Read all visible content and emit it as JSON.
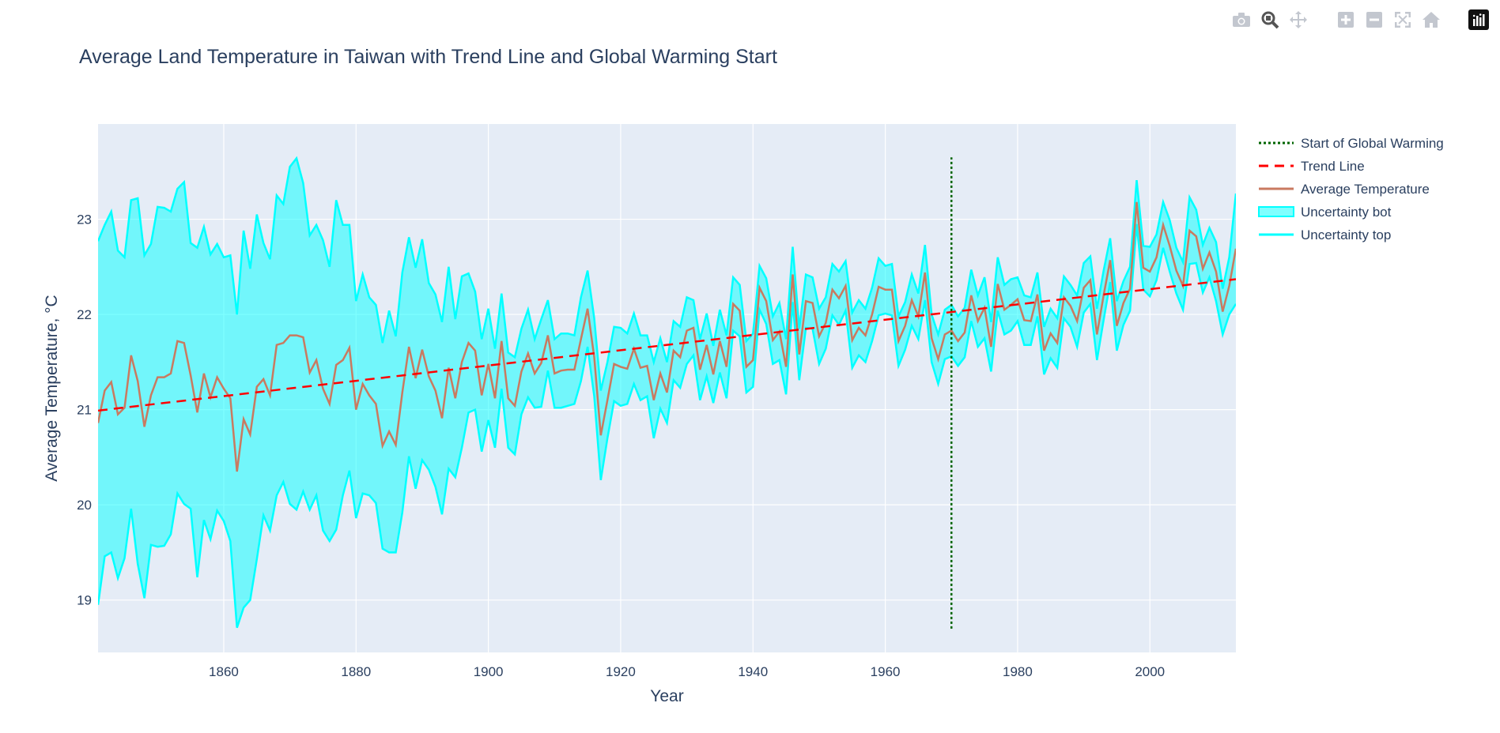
{
  "toolbar": {
    "buttons": [
      {
        "name": "camera-icon"
      },
      {
        "name": "zoom-icon"
      },
      {
        "name": "pan-icon"
      },
      {
        "name": "zoom-in-icon"
      },
      {
        "name": "zoom-out-icon"
      },
      {
        "name": "autoscale-icon"
      },
      {
        "name": "reset-axes-icon"
      },
      {
        "name": "plotly-logo-icon"
      }
    ]
  },
  "chart_data": {
    "type": "line",
    "title": "Average Land Temperature in Taiwan with Trend Line and Global Warming Start",
    "xlabel": "Year",
    "ylabel": "Average Temperature, °C",
    "xlim": [
      1841,
      2013
    ],
    "ylim": [
      18.45,
      24.0
    ],
    "xticks": [
      1860,
      1880,
      1900,
      1920,
      1940,
      1960,
      1980,
      2000
    ],
    "yticks": [
      19,
      20,
      21,
      22,
      23
    ],
    "grid": true,
    "legend_position": "top-right",
    "colors": {
      "plot_bg": "#e5ecf6",
      "grid": "#ffffff",
      "band": "#00ffff",
      "band_fill": "rgba(0,255,255,0.5)",
      "average": "#c97a60",
      "trend": "#ff0000",
      "warming": "#006400"
    },
    "legend": [
      {
        "label": "Start of Global Warming",
        "style": "dotted",
        "color": "#006400"
      },
      {
        "label": "Trend Line",
        "style": "dashed",
        "color": "#ff0000"
      },
      {
        "label": "Average Temperature",
        "style": "solid",
        "color": "#c97a60"
      },
      {
        "label": "Uncertainty bot",
        "style": "band",
        "color": "#00ffff"
      },
      {
        "label": "Uncertainty top",
        "style": "solid",
        "color": "#00ffff"
      }
    ],
    "warming_start": {
      "x": 1970,
      "y_range": [
        18.7,
        23.65
      ]
    },
    "trend": {
      "x": [
        1841,
        2013
      ],
      "y": [
        20.99,
        22.37
      ]
    },
    "x": [
      1841,
      1842,
      1843,
      1844,
      1845,
      1846,
      1847,
      1848,
      1849,
      1850,
      1851,
      1852,
      1853,
      1854,
      1855,
      1856,
      1857,
      1858,
      1859,
      1860,
      1861,
      1862,
      1863,
      1864,
      1865,
      1866,
      1867,
      1868,
      1869,
      1870,
      1871,
      1872,
      1873,
      1874,
      1875,
      1876,
      1877,
      1878,
      1879,
      1880,
      1881,
      1882,
      1883,
      1884,
      1885,
      1886,
      1887,
      1888,
      1889,
      1890,
      1891,
      1892,
      1893,
      1894,
      1895,
      1896,
      1897,
      1898,
      1899,
      1900,
      1901,
      1902,
      1903,
      1904,
      1905,
      1906,
      1907,
      1908,
      1909,
      1910,
      1911,
      1912,
      1913,
      1914,
      1915,
      1916,
      1917,
      1918,
      1919,
      1920,
      1921,
      1922,
      1923,
      1924,
      1925,
      1926,
      1927,
      1928,
      1929,
      1930,
      1931,
      1932,
      1933,
      1934,
      1935,
      1936,
      1937,
      1938,
      1939,
      1940,
      1941,
      1942,
      1943,
      1944,
      1945,
      1946,
      1947,
      1948,
      1949,
      1950,
      1951,
      1952,
      1953,
      1954,
      1955,
      1956,
      1957,
      1958,
      1959,
      1960,
      1961,
      1962,
      1963,
      1964,
      1965,
      1966,
      1967,
      1968,
      1969,
      1970,
      1971,
      1972,
      1973,
      1974,
      1975,
      1976,
      1977,
      1978,
      1979,
      1980,
      1981,
      1982,
      1983,
      1984,
      1985,
      1986,
      1987,
      1988,
      1989,
      1990,
      1991,
      1992,
      1993,
      1994,
      1995,
      1996,
      1997,
      1998,
      1999,
      2000,
      2001,
      2002,
      2003,
      2004,
      2005,
      2006,
      2007,
      2008,
      2009,
      2010,
      2011,
      2012,
      2013
    ],
    "series": [
      {
        "name": "Average Temperature",
        "values": [
          20.86,
          21.2,
          21.29,
          20.95,
          21.02,
          21.57,
          21.3,
          20.82,
          21.15,
          21.34,
          21.34,
          21.38,
          21.72,
          21.7,
          21.36,
          20.97,
          21.38,
          21.13,
          21.34,
          21.22,
          21.12,
          20.35,
          20.9,
          20.74,
          21.24,
          21.32,
          21.15,
          21.68,
          21.7,
          21.78,
          21.78,
          21.76,
          21.39,
          21.52,
          21.22,
          21.06,
          21.47,
          21.52,
          21.65,
          21.0,
          21.27,
          21.15,
          21.06,
          20.62,
          20.77,
          20.63,
          21.18,
          21.66,
          21.33,
          21.63,
          21.35,
          21.2,
          20.91,
          21.44,
          21.12,
          21.5,
          21.7,
          21.62,
          21.15,
          21.48,
          21.12,
          21.72,
          21.12,
          21.04,
          21.4,
          21.59,
          21.38,
          21.49,
          21.78,
          21.38,
          21.41,
          21.42,
          21.42,
          21.74,
          22.06,
          21.55,
          20.73,
          21.1,
          21.48,
          21.45,
          21.43,
          21.64,
          21.44,
          21.46,
          21.1,
          21.38,
          21.18,
          21.62,
          21.55,
          21.83,
          21.86,
          21.42,
          21.68,
          21.37,
          21.72,
          21.45,
          22.11,
          22.04,
          21.45,
          21.52,
          22.28,
          22.14,
          21.73,
          21.82,
          21.45,
          22.42,
          21.58,
          22.14,
          22.12,
          21.77,
          21.91,
          22.26,
          22.17,
          22.3,
          21.73,
          21.86,
          21.78,
          22.0,
          22.29,
          22.26,
          22.26,
          21.72,
          21.88,
          22.15,
          21.98,
          22.44,
          21.75,
          21.53,
          21.79,
          21.83,
          21.72,
          21.81,
          22.2,
          21.93,
          22.07,
          21.66,
          22.32,
          22.05,
          22.1,
          22.16,
          21.94,
          21.93,
          22.21,
          21.62,
          21.8,
          21.7,
          22.18,
          22.09,
          21.93,
          22.28,
          22.36,
          21.79,
          22.2,
          22.57,
          21.88,
          22.12,
          22.27,
          23.18,
          22.49,
          22.45,
          22.6,
          22.94,
          22.72,
          22.46,
          22.3,
          22.88,
          22.82,
          22.48,
          22.65,
          22.45,
          22.03,
          22.3,
          22.69
        ]
      },
      {
        "name": "Uncertainty top",
        "values": [
          22.77,
          22.94,
          23.08,
          22.67,
          22.6,
          23.2,
          23.22,
          22.62,
          22.74,
          23.13,
          23.12,
          23.08,
          23.32,
          23.39,
          22.75,
          22.7,
          22.92,
          22.63,
          22.74,
          22.6,
          22.62,
          22.0,
          22.88,
          22.48,
          23.05,
          22.75,
          22.58,
          23.25,
          23.16,
          23.55,
          23.64,
          23.38,
          22.83,
          22.94,
          22.78,
          22.5,
          23.2,
          22.94,
          22.94,
          22.14,
          22.42,
          22.18,
          22.1,
          21.7,
          22.04,
          21.77,
          22.44,
          22.81,
          22.49,
          22.79,
          22.33,
          22.21,
          21.92,
          22.5,
          21.95,
          22.4,
          22.43,
          22.24,
          21.74,
          22.06,
          21.64,
          22.22,
          21.6,
          21.55,
          21.85,
          22.05,
          21.74,
          21.95,
          22.15,
          21.74,
          21.8,
          21.8,
          21.78,
          22.18,
          22.46,
          21.96,
          21.2,
          21.5,
          21.87,
          21.86,
          21.8,
          22.01,
          21.78,
          21.78,
          21.5,
          21.75,
          21.5,
          21.93,
          21.87,
          22.18,
          22.15,
          21.74,
          22.01,
          21.67,
          22.05,
          21.78,
          22.39,
          22.31,
          21.72,
          21.8,
          22.51,
          22.38,
          21.98,
          22.12,
          21.74,
          22.71,
          21.85,
          22.42,
          22.39,
          22.06,
          22.18,
          22.53,
          22.45,
          22.56,
          22.02,
          22.15,
          22.06,
          22.28,
          22.59,
          22.51,
          22.53,
          21.98,
          22.13,
          22.42,
          22.22,
          22.73,
          22.0,
          21.79,
          22.05,
          22.1,
          21.98,
          22.07,
          22.47,
          22.2,
          22.39,
          21.92,
          22.6,
          22.31,
          22.37,
          22.39,
          22.2,
          22.18,
          22.44,
          21.87,
          22.06,
          21.96,
          22.4,
          22.31,
          22.2,
          22.54,
          22.61,
          22.06,
          22.46,
          22.8,
          22.14,
          22.35,
          22.5,
          23.41,
          22.72,
          22.71,
          22.84,
          23.18,
          22.99,
          22.7,
          22.55,
          23.23,
          23.1,
          22.73,
          22.91,
          22.76,
          22.27,
          22.6,
          23.27
        ]
      },
      {
        "name": "Uncertainty bot",
        "values": [
          18.95,
          19.46,
          19.5,
          19.23,
          19.44,
          19.96,
          19.38,
          19.02,
          19.58,
          19.56,
          19.57,
          19.69,
          20.12,
          20.01,
          19.96,
          19.24,
          19.84,
          19.64,
          19.94,
          19.83,
          19.62,
          18.71,
          18.92,
          19.0,
          19.43,
          19.89,
          19.73,
          20.1,
          20.24,
          20.01,
          19.95,
          20.14,
          19.95,
          20.1,
          19.73,
          19.62,
          19.74,
          20.1,
          20.36,
          19.86,
          20.12,
          20.1,
          20.02,
          19.54,
          19.5,
          19.5,
          19.92,
          20.51,
          20.17,
          20.47,
          20.37,
          20.19,
          19.9,
          20.38,
          20.29,
          20.6,
          20.97,
          21.0,
          20.56,
          20.89,
          20.6,
          21.22,
          20.6,
          20.53,
          20.95,
          21.13,
          21.02,
          21.03,
          21.41,
          21.02,
          21.02,
          21.04,
          21.06,
          21.3,
          21.66,
          21.14,
          20.26,
          20.7,
          21.09,
          21.04,
          21.06,
          21.27,
          21.1,
          21.14,
          20.7,
          21.01,
          20.86,
          21.31,
          21.23,
          21.48,
          21.57,
          21.1,
          21.35,
          21.07,
          21.39,
          21.12,
          21.83,
          21.77,
          21.18,
          21.24,
          22.05,
          21.9,
          21.48,
          21.52,
          21.16,
          22.13,
          21.31,
          21.86,
          21.85,
          21.48,
          21.64,
          21.99,
          21.89,
          22.04,
          21.44,
          21.57,
          21.5,
          21.72,
          21.99,
          22.01,
          21.99,
          21.46,
          21.63,
          21.88,
          21.74,
          22.15,
          21.5,
          21.27,
          21.53,
          21.56,
          21.46,
          21.55,
          21.93,
          21.66,
          21.75,
          21.4,
          22.04,
          21.79,
          21.83,
          21.93,
          21.68,
          21.68,
          21.98,
          21.37,
          21.54,
          21.44,
          21.96,
          21.87,
          21.66,
          22.02,
          22.11,
          21.52,
          21.94,
          22.34,
          21.62,
          21.89,
          22.04,
          22.95,
          22.26,
          22.19,
          22.36,
          22.7,
          22.45,
          22.22,
          22.05,
          22.53,
          22.54,
          22.23,
          22.39,
          22.14,
          21.79,
          22.0,
          22.11
        ]
      }
    ]
  }
}
